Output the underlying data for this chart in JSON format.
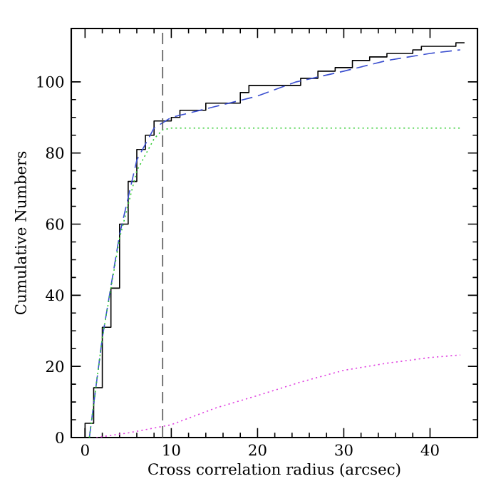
{
  "chart_data": {
    "type": "line",
    "xlabel": "Cross correlation radius (arcsec)",
    "ylabel": "Cumulative Numbers",
    "xlim": [
      -1.6,
      45.5
    ],
    "ylim": [
      0,
      115
    ],
    "xticks": [
      0,
      10,
      20,
      30,
      40
    ],
    "yticks": [
      0,
      20,
      40,
      60,
      80,
      100
    ],
    "marker": "none",
    "series": [
      {
        "type": "step",
        "color": "#000000",
        "line_style": "solid",
        "x": [
          0,
          0,
          1,
          2,
          3,
          4,
          5,
          6,
          7,
          8,
          10,
          11,
          14,
          18,
          19,
          25,
          27,
          29,
          31,
          33,
          35,
          38,
          39,
          43,
          44
        ],
        "values": [
          0,
          4,
          14,
          31,
          42,
          60,
          72,
          81,
          85,
          89,
          90,
          92,
          94,
          97,
          99,
          101,
          103,
          104,
          106,
          107,
          108,
          109,
          110,
          111,
          111
        ]
      },
      {
        "color": "#3b4fcf",
        "line_style": "dashed",
        "x": [
          0.5,
          2,
          4,
          6,
          8,
          9,
          10,
          15,
          20,
          24.5,
          30,
          35,
          40,
          43.5
        ],
        "values": [
          0,
          28,
          57,
          78,
          87,
          88.5,
          90,
          93,
          96,
          100,
          103,
          106,
          108,
          109
        ]
      },
      {
        "color": "#33cc33",
        "line_style": "dotted",
        "x": [
          0.5,
          2,
          4,
          6,
          8,
          9,
          10,
          43.5
        ],
        "values": [
          0,
          28,
          56,
          75,
          84,
          86.5,
          87,
          87
        ]
      },
      {
        "color": "#e040e0",
        "line_style": "dotted",
        "x": [
          1.3,
          5,
          10,
          15,
          20,
          25,
          30,
          35,
          40,
          43.5
        ],
        "values": [
          0,
          1.3,
          3.6,
          8.2,
          11.8,
          15.6,
          18.9,
          20.9,
          22.5,
          23.2
        ]
      }
    ],
    "ref_lines": [
      {
        "axis": "x",
        "value": 9,
        "color": "#555555",
        "line_style": "dashed"
      }
    ]
  }
}
